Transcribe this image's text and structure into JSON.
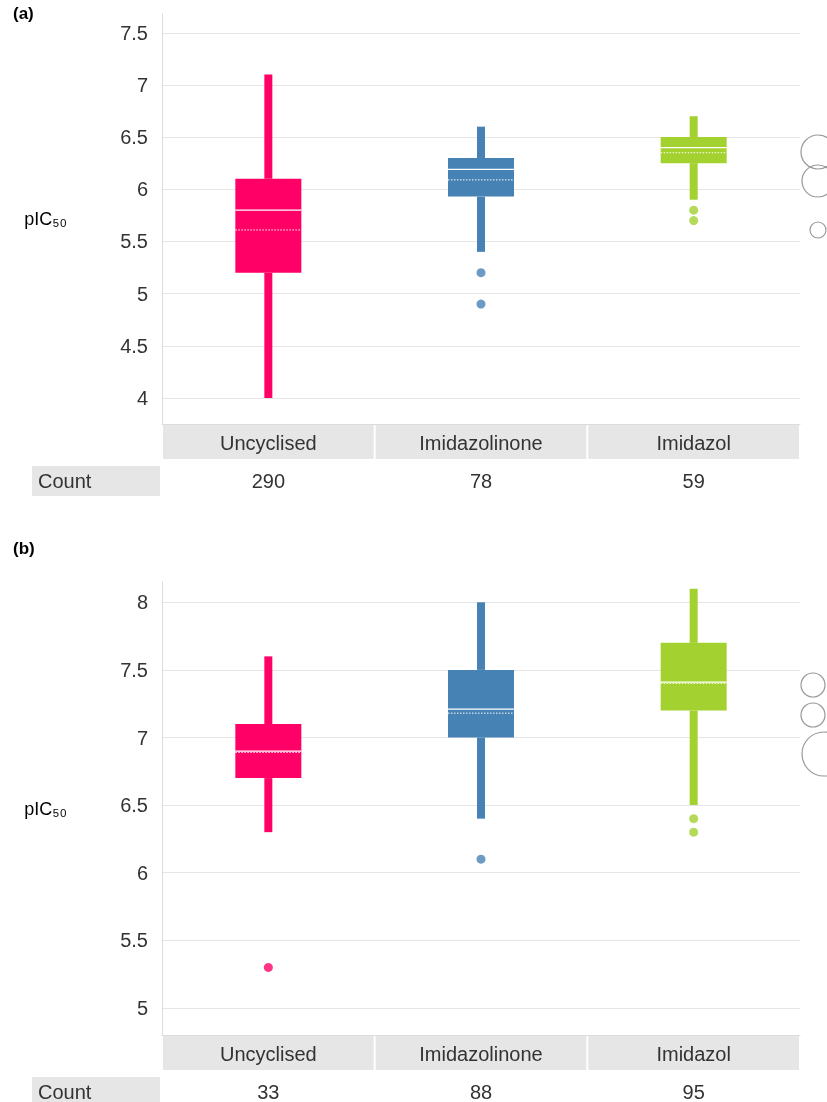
{
  "chart_data": [
    {
      "type": "box",
      "title": "(a)",
      "ylabel": "pIC₅₀",
      "categories": [
        "Uncyclised",
        "Imidazolinone",
        "Imidazol"
      ],
      "colors": [
        "#ff0066",
        "#4682b4",
        "#a3d12f"
      ],
      "boxes": [
        {
          "low": 4.0,
          "q1": 5.2,
          "median": 5.8,
          "q3": 6.1,
          "high": 7.1,
          "mean": 5.61
        },
        {
          "low": 5.4,
          "q1": 5.93,
          "median": 6.19,
          "q3": 6.3,
          "high": 6.6,
          "mean": 6.09,
          "outliers": [
            5.2,
            4.9
          ]
        },
        {
          "low": 5.9,
          "q1": 6.25,
          "median": 6.4,
          "q3": 6.5,
          "high": 6.7,
          "mean": 6.35,
          "outliers": [
            5.8,
            5.7
          ]
        }
      ],
      "ylim": [
        3.75,
        7.68
      ],
      "yticks": [
        4,
        4.5,
        5,
        5.5,
        6,
        6.5,
        7,
        7.5
      ],
      "grid": "y",
      "annotations": [
        "Count",
        "290",
        "78",
        "59"
      ]
    },
    {
      "type": "box",
      "title": "(b)",
      "ylabel": "pIC₅₀",
      "categories": [
        "Uncyclised",
        "Imidazolinone",
        "Imidazol"
      ],
      "colors": [
        "#ff0066",
        "#4682b4",
        "#a3d12f"
      ],
      "boxes": [
        {
          "low": 6.3,
          "q1": 6.7,
          "median": 6.9,
          "q3": 7.1,
          "high": 7.6,
          "mean": 6.89,
          "outliers": [
            5.3
          ]
        },
        {
          "low": 6.4,
          "q1": 7.0,
          "median": 7.21,
          "q3": 7.5,
          "high": 8.0,
          "mean": 7.18,
          "outliers": [
            6.1
          ]
        },
        {
          "low": 6.5,
          "q1": 7.2,
          "median": 7.41,
          "q3": 7.7,
          "high": 8.1,
          "mean": 7.4,
          "outliers": [
            6.4,
            6.3
          ]
        }
      ],
      "ylim": [
        4.8,
        8.15
      ],
      "yticks": [
        5,
        5.5,
        6,
        6.5,
        7,
        7.5,
        8
      ],
      "grid": "y",
      "annotations": [
        "Count",
        "33",
        "88",
        "95"
      ]
    }
  ]
}
